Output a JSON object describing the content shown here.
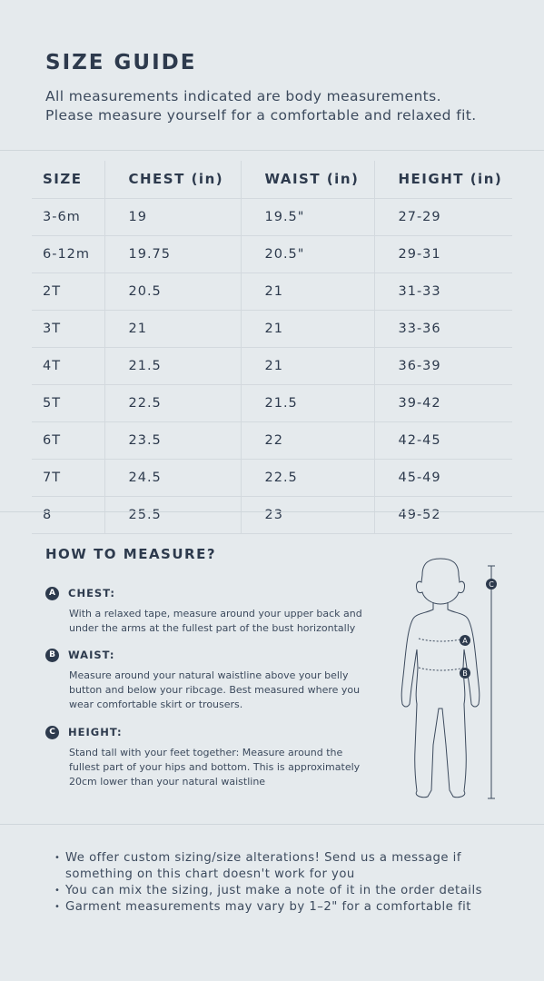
{
  "header": {
    "title": "SIZE GUIDE",
    "subtitle_line1": "All measurements indicated are body measurements.",
    "subtitle_line2": "Please measure yourself for a comfortable and relaxed fit."
  },
  "table": {
    "headers": [
      "SIZE",
      "CHEST (in)",
      "WAIST (in)",
      "HEIGHT (in)"
    ],
    "rows": [
      [
        "3-6m",
        "19",
        "19.5\"",
        "27-29"
      ],
      [
        "6-12m",
        "19.75",
        "20.5\"",
        "29-31"
      ],
      [
        "2T",
        "20.5",
        "21",
        "31-33"
      ],
      [
        "3T",
        "21",
        "21",
        "33-36"
      ],
      [
        "4T",
        "21.5",
        "21",
        "36-39"
      ],
      [
        "5T",
        "22.5",
        "21.5",
        "39-42"
      ],
      [
        "6T",
        "23.5",
        "22",
        "42-45"
      ],
      [
        "7T",
        "24.5",
        "22.5",
        "45-49"
      ],
      [
        "8",
        "25.5",
        "23",
        "49-52"
      ]
    ]
  },
  "how_to_measure": {
    "title": "HOW TO MEASURE?",
    "items": [
      {
        "badge": "A",
        "label": "CHEST:",
        "text": "With a relaxed tape, measure around your upper back and under the arms at the fullest part of the bust horizontally"
      },
      {
        "badge": "B",
        "label": "WAIST:",
        "text": "Measure around your natural waistline above your belly button and below your ribcage. Best measured where you wear comfortable skirt or trousers."
      },
      {
        "badge": "C",
        "label": "HEIGHT:",
        "text": "Stand tall with your feet together: Measure around the fullest part of your hips and bottom. This is approximately 20cm lower than your natural waistline"
      }
    ],
    "figure_labels": {
      "a": "A",
      "b": "B",
      "c": "C"
    }
  },
  "notes": [
    "We offer custom sizing/size alterations! Send us a message if something on this chart doesn't work for you",
    "You can mix the sizing, just make a note of it in the order details",
    "Garment measurements may vary by 1–2\" for a comfortable fit"
  ],
  "colors": {
    "background": "#e5eaed",
    "text": "#2d3a4d",
    "divider": "#cfd6db"
  }
}
